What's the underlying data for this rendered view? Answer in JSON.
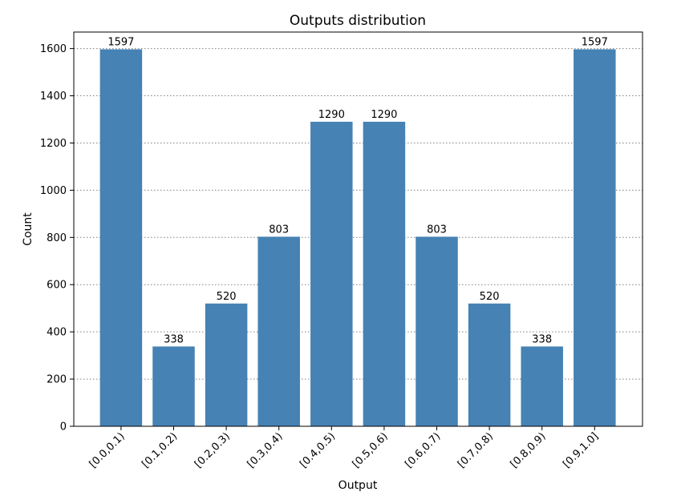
{
  "chart_data": {
    "type": "bar",
    "title": "Outputs distribution",
    "xlabel": "Output",
    "ylabel": "Count",
    "categories": [
      "[0.0,0.1)",
      "[0.1,0.2)",
      "[0.2,0.3)",
      "[0.3,0.4)",
      "[0.4,0.5)",
      "[0.5,0.6)",
      "[0.6,0.7)",
      "[0.7,0.8)",
      "[0.8,0.9)",
      "[0.9,1.0]"
    ],
    "values": [
      1597,
      338,
      520,
      803,
      1290,
      1290,
      803,
      520,
      338,
      1597
    ],
    "ylim": [
      0,
      1670
    ],
    "yticks": [
      0,
      200,
      400,
      600,
      800,
      1000,
      1200,
      1400,
      1600
    ],
    "grid": "y-dotted",
    "bar_color": "#4682b4"
  }
}
